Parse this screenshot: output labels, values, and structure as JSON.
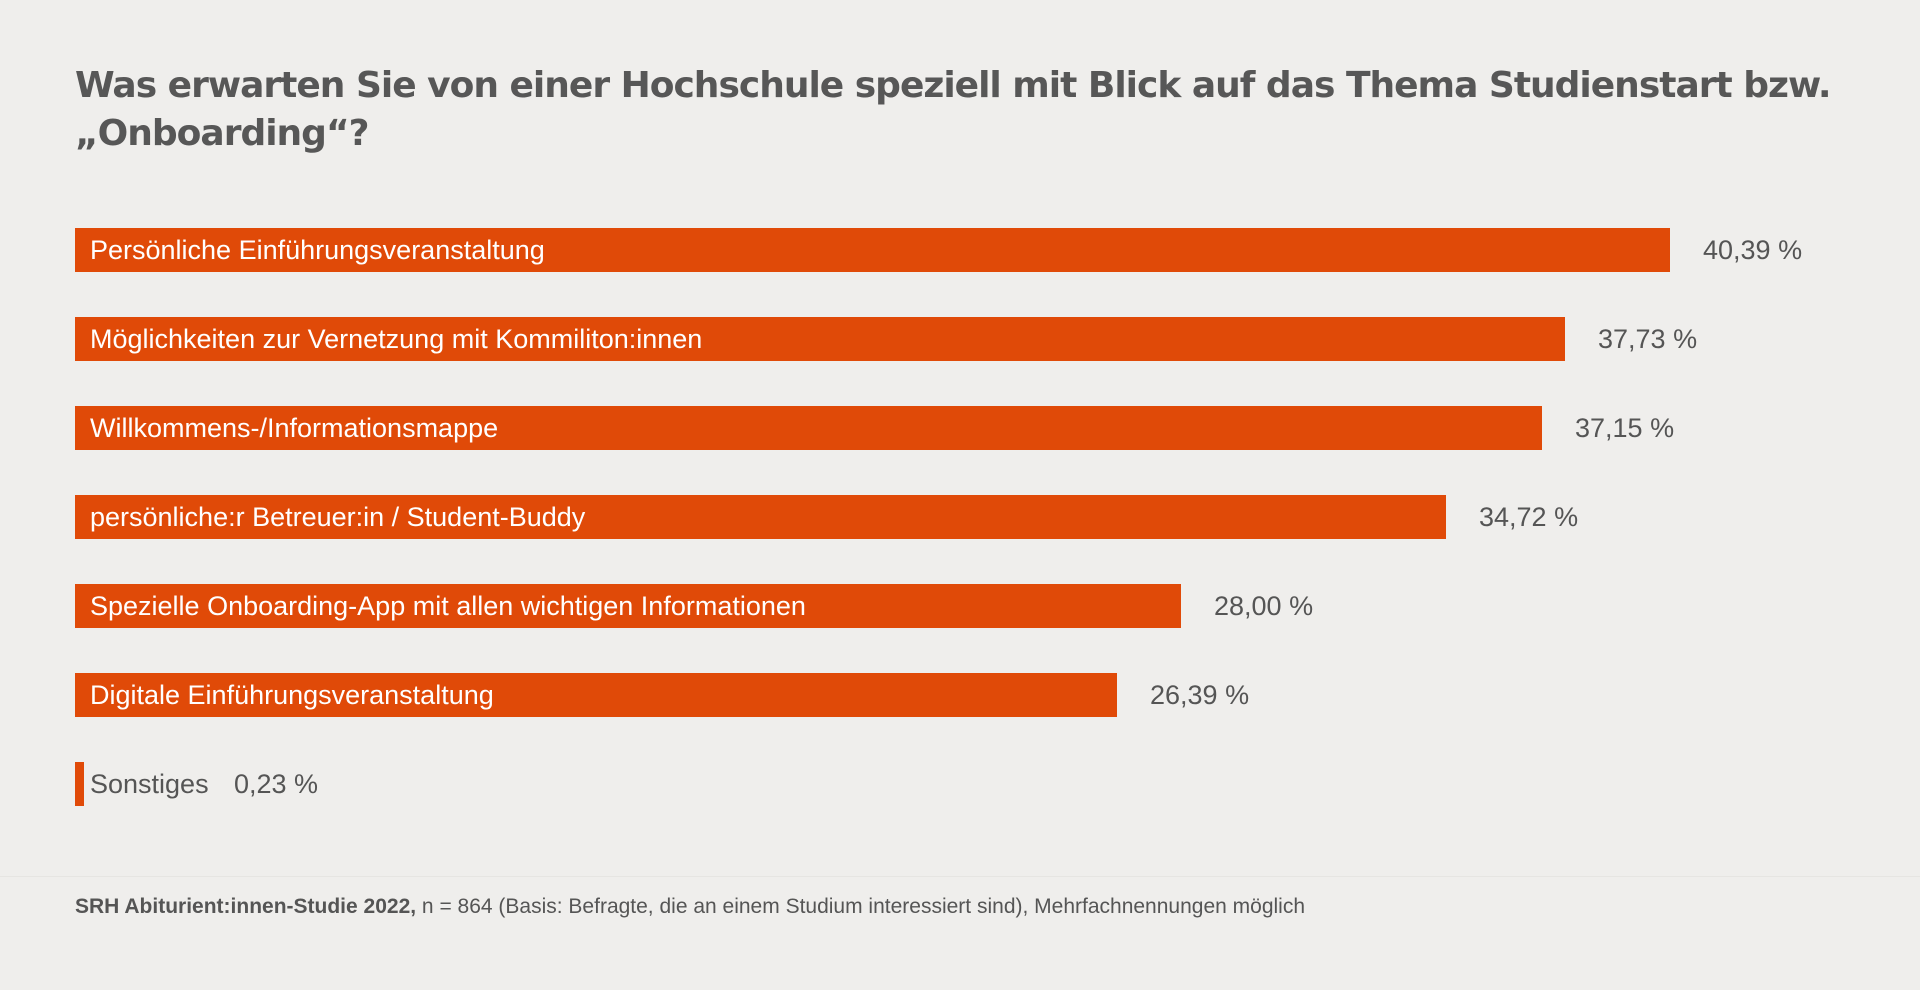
{
  "chart_data": {
    "type": "bar",
    "orientation": "horizontal",
    "title": "Was erwarten Sie von einer Hochschule speziell mit Blick auf das Thema Studienstart bzw. „Onboarding“?",
    "categories": [
      "Persönliche Einführungsveranstaltung",
      "Möglichkeiten zur Vernetzung mit Kommiliton:innen",
      "Willkommens-/Informationsmappe",
      "persönliche:r Betreuer:in / Student-Buddy",
      "Spezielle Onboarding-App mit allen wichtigen Informationen",
      "Digitale Einführungsveranstaltung",
      "Sonstiges"
    ],
    "values": [
      40.39,
      37.73,
      37.15,
      34.72,
      28.0,
      26.39,
      0.23
    ],
    "value_labels": [
      "40,39 %",
      "37,73 %",
      "37,15 %",
      "34,72 %",
      "28,00 %",
      "26,39 %",
      "0,23 %"
    ],
    "unit": "%",
    "xlim": [
      0,
      40.39
    ],
    "grid": false,
    "xlabel": "",
    "ylabel": ""
  },
  "colors": {
    "bar": "#e04a08",
    "background": "#efeeec",
    "text": "#555555"
  },
  "footer": {
    "source": "SRH Abiturient:innen-Studie 2022,",
    "note": " n = 864 (Basis: Befragte, die an einem Studium interessiert sind), Mehrfachnennungen möglich"
  }
}
